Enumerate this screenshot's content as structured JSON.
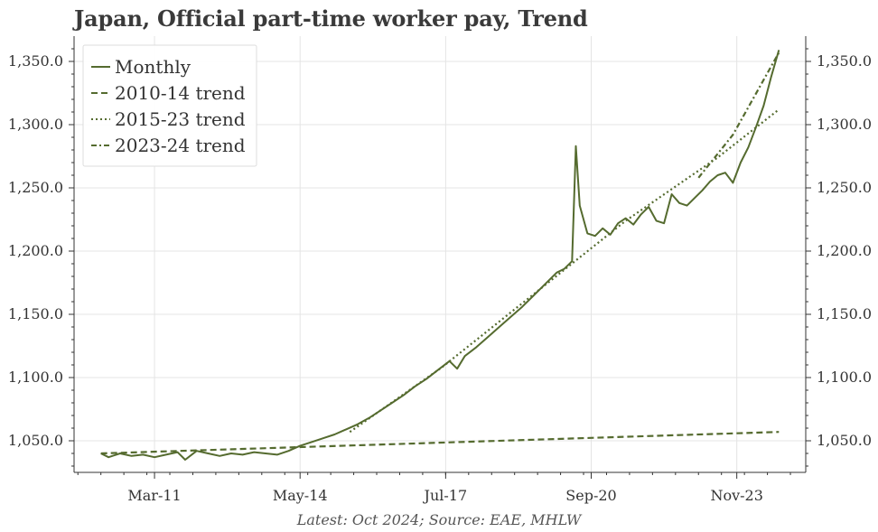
{
  "chart_data": {
    "type": "line",
    "title": "Japan, Official part-time worker pay, Trend",
    "source_note": "Latest: Oct 2024; Source: EAE, MHLW",
    "x_range": [
      "2009-06",
      "2025-05"
    ],
    "ylim": [
      1025,
      1370
    ],
    "y_ticks": [
      1050,
      1100,
      1150,
      1200,
      1250,
      1300,
      1350
    ],
    "y_tick_labels": [
      "1,050.0",
      "1,100.0",
      "1,150.0",
      "1,200.0",
      "1,250.0",
      "1,300.0",
      "1,350.0"
    ],
    "x_tick_labels": [
      {
        "date": "2011-03",
        "label": "Mar-11"
      },
      {
        "date": "2014-05",
        "label": "May-14"
      },
      {
        "date": "2017-07",
        "label": "Jul-17"
      },
      {
        "date": "2020-09",
        "label": "Sep-20"
      },
      {
        "date": "2023-11",
        "label": "Nov-23"
      }
    ],
    "grid": true,
    "legend_position": "top-left",
    "color": "#556b2f",
    "series": [
      {
        "name": "Monthly",
        "style": "solid",
        "points": [
          [
            "2010-01",
            1040
          ],
          [
            "2010-03",
            1037
          ],
          [
            "2010-06",
            1040
          ],
          [
            "2010-09",
            1038
          ],
          [
            "2010-12",
            1039
          ],
          [
            "2011-03",
            1037
          ],
          [
            "2011-06",
            1039
          ],
          [
            "2011-09",
            1041
          ],
          [
            "2011-11",
            1035
          ],
          [
            "2012-02",
            1042
          ],
          [
            "2012-05",
            1040
          ],
          [
            "2012-08",
            1038
          ],
          [
            "2012-11",
            1040
          ],
          [
            "2013-02",
            1039
          ],
          [
            "2013-05",
            1041
          ],
          [
            "2013-08",
            1040
          ],
          [
            "2013-11",
            1039
          ],
          [
            "2014-02",
            1042
          ],
          [
            "2014-05",
            1046
          ],
          [
            "2014-08",
            1049
          ],
          [
            "2014-11",
            1052
          ],
          [
            "2015-02",
            1055
          ],
          [
            "2015-05",
            1059
          ],
          [
            "2015-08",
            1063
          ],
          [
            "2015-11",
            1068
          ],
          [
            "2016-02",
            1074
          ],
          [
            "2016-05",
            1080
          ],
          [
            "2016-08",
            1086
          ],
          [
            "2016-11",
            1093
          ],
          [
            "2017-02",
            1099
          ],
          [
            "2017-05",
            1106
          ],
          [
            "2017-08",
            1113
          ],
          [
            "2017-10",
            1107
          ],
          [
            "2017-12",
            1117
          ],
          [
            "2018-03",
            1124
          ],
          [
            "2018-06",
            1132
          ],
          [
            "2018-09",
            1140
          ],
          [
            "2018-12",
            1148
          ],
          [
            "2019-03",
            1156
          ],
          [
            "2019-06",
            1165
          ],
          [
            "2019-09",
            1174
          ],
          [
            "2019-12",
            1183
          ],
          [
            "2020-02",
            1186
          ],
          [
            "2020-04",
            1192
          ],
          [
            "2020-05",
            1283
          ],
          [
            "2020-06",
            1236
          ],
          [
            "2020-08",
            1214
          ],
          [
            "2020-10",
            1212
          ],
          [
            "2020-12",
            1218
          ],
          [
            "2021-02",
            1213
          ],
          [
            "2021-04",
            1222
          ],
          [
            "2021-06",
            1226
          ],
          [
            "2021-08",
            1221
          ],
          [
            "2021-10",
            1229
          ],
          [
            "2021-12",
            1235
          ],
          [
            "2022-02",
            1224
          ],
          [
            "2022-04",
            1222
          ],
          [
            "2022-06",
            1245
          ],
          [
            "2022-08",
            1238
          ],
          [
            "2022-10",
            1236
          ],
          [
            "2022-12",
            1242
          ],
          [
            "2023-02",
            1248
          ],
          [
            "2023-04",
            1255
          ],
          [
            "2023-06",
            1260
          ],
          [
            "2023-08",
            1262
          ],
          [
            "2023-10",
            1254
          ],
          [
            "2023-12",
            1270
          ],
          [
            "2024-02",
            1282
          ],
          [
            "2024-04",
            1298
          ],
          [
            "2024-06",
            1315
          ],
          [
            "2024-08",
            1338
          ],
          [
            "2024-10",
            1359
          ]
        ]
      },
      {
        "name": "2010-14 trend",
        "style": "dashed",
        "points": [
          [
            "2010-01",
            1040
          ],
          [
            "2024-10",
            1057
          ]
        ]
      },
      {
        "name": "2015-23 trend",
        "style": "dotted",
        "points": [
          [
            "2015-06",
            1057
          ],
          [
            "2017-06",
            1108
          ],
          [
            "2019-06",
            1166
          ],
          [
            "2021-06",
            1224
          ],
          [
            "2023-06",
            1274
          ],
          [
            "2024-10",
            1312
          ]
        ]
      },
      {
        "name": "2023-24 trend",
        "style": "dashdot",
        "points": [
          [
            "2023-01",
            1258
          ],
          [
            "2023-10",
            1292
          ],
          [
            "2024-10",
            1357
          ]
        ]
      }
    ]
  }
}
